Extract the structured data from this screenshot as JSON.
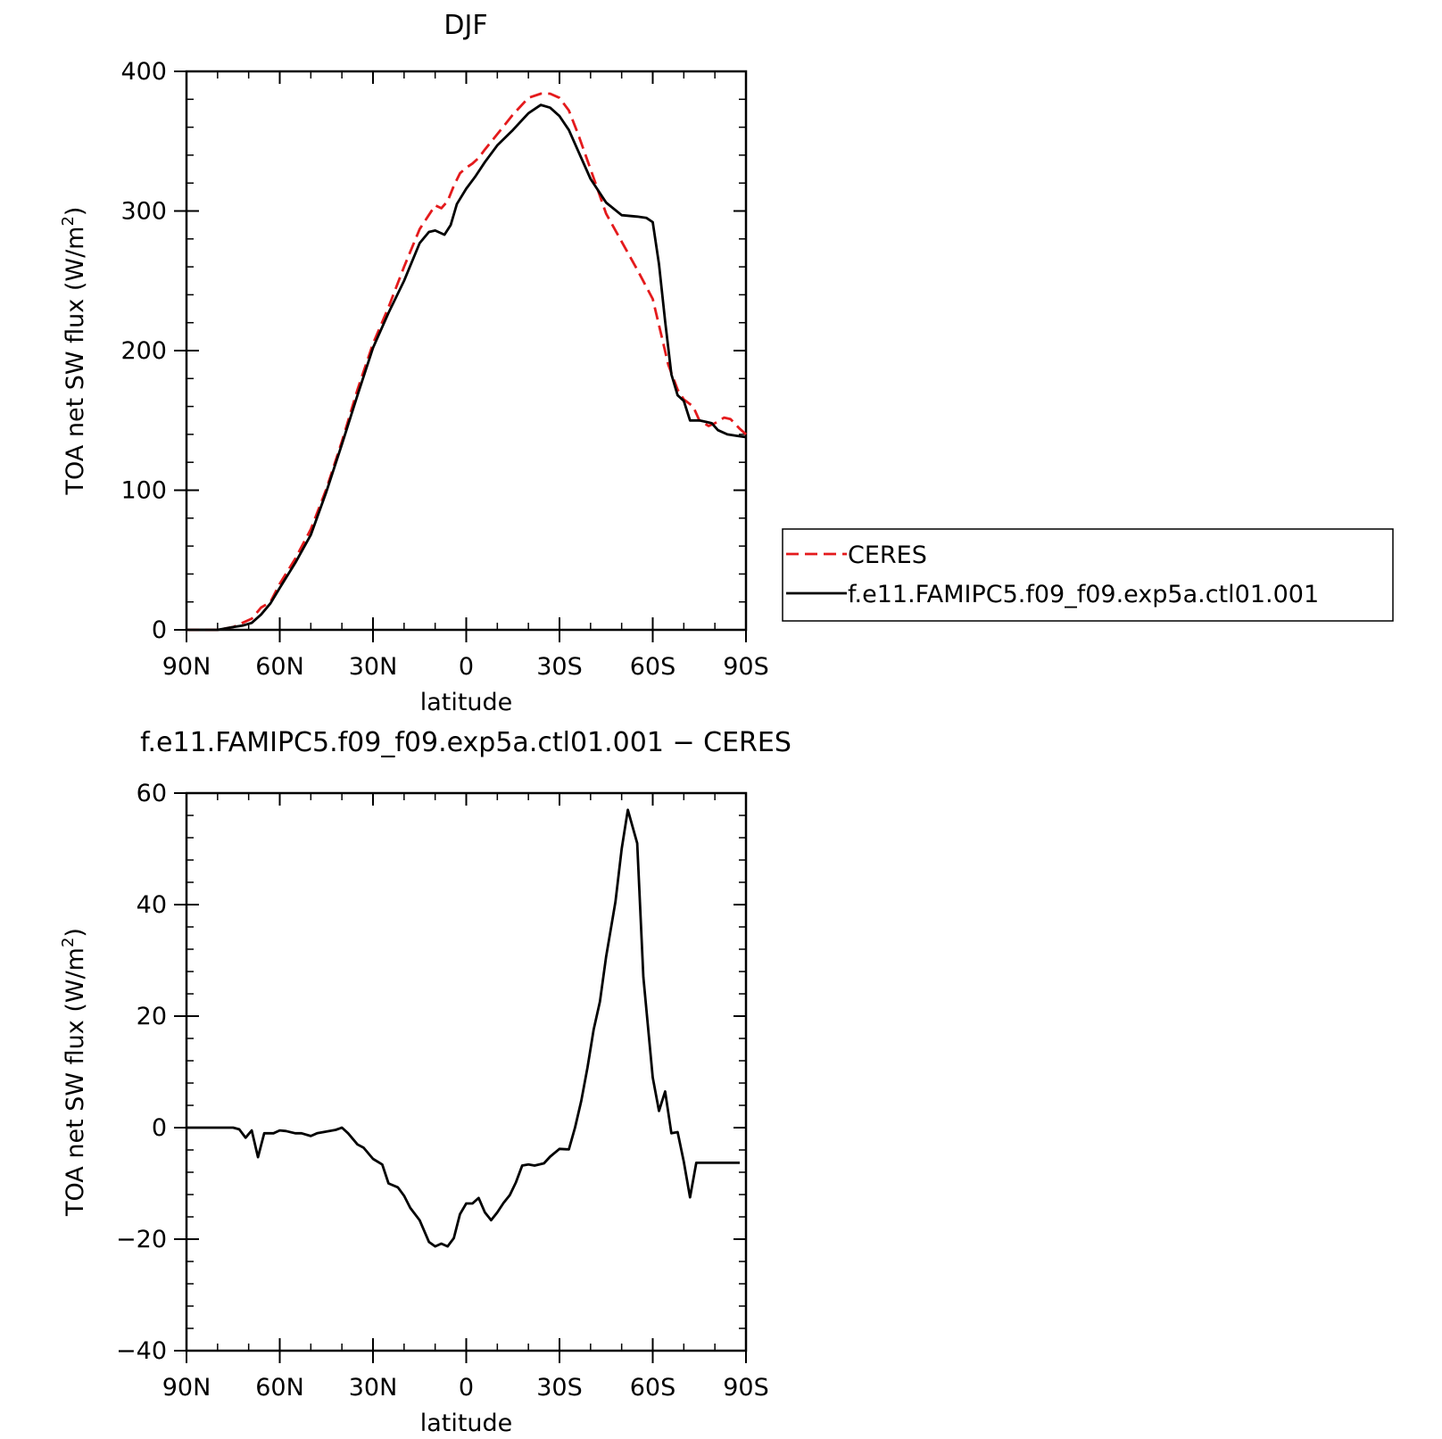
{
  "chart_data": [
    {
      "type": "line",
      "title": "DJF",
      "xlabel": "latitude",
      "ylabel": "TOA net SW flux (W/m²)",
      "ylabel_main": "TOA net SW flux (W/m",
      "ylabel_sup": "2",
      "ylabel_end": ")",
      "xlim": [
        90,
        -90
      ],
      "ylim": [
        0,
        400
      ],
      "xticks": [
        90,
        60,
        30,
        0,
        -30,
        -60,
        -90
      ],
      "xtick_labels": [
        "90N",
        "60N",
        "30N",
        "0",
        "30S",
        "60S",
        "90S"
      ],
      "yticks": [
        0,
        100,
        200,
        300,
        400
      ],
      "ytick_labels": [
        "0",
        "100",
        "200",
        "300",
        "400"
      ],
      "grid": false,
      "legend": "right",
      "series": [
        {
          "name": "CERES",
          "color": "#e41a1c",
          "dash": "dashed",
          "x": [
            90,
            85,
            80,
            75,
            72,
            69,
            66,
            63,
            60,
            55,
            50,
            45,
            40,
            35,
            30,
            25,
            20,
            15,
            10,
            8,
            6,
            4,
            2,
            0,
            -2,
            -4,
            -6,
            -10,
            -15,
            -20,
            -24,
            -27,
            -30,
            -33,
            -36,
            -40,
            -45,
            -50,
            -55,
            -60,
            -63,
            -65,
            -68,
            -70,
            -73,
            -75,
            -78,
            -80,
            -83,
            -85,
            -88,
            -90
          ],
          "y": [
            0,
            0,
            0,
            2,
            5,
            8,
            16,
            20,
            33,
            51,
            72,
            101,
            135,
            172,
            205,
            231,
            260,
            287,
            304,
            302,
            307,
            318,
            327,
            331,
            334,
            338,
            344,
            355,
            369,
            381,
            384,
            384,
            381,
            372,
            355,
            330,
            298,
            278,
            258,
            237,
            209,
            190,
            172,
            165,
            160,
            150,
            146,
            148,
            152,
            151,
            144,
            140
          ]
        },
        {
          "name": "f.e11.FAMIPC5.f09_f09.exp5a.ctl01.001",
          "color": "#000000",
          "dash": "solid",
          "x": [
            90,
            85,
            80,
            75,
            72,
            69,
            66,
            63,
            60,
            55,
            50,
            45,
            40,
            35,
            30,
            25,
            20,
            15,
            12,
            10,
            7,
            5,
            3,
            0,
            -3,
            -6,
            -10,
            -15,
            -20,
            -24,
            -27,
            -30,
            -33,
            -36,
            -40,
            -45,
            -50,
            -55,
            -58,
            -60,
            -62,
            -64,
            -66,
            -68,
            -70,
            -72,
            -75,
            -77,
            -79,
            -81,
            -84,
            -87,
            -90
          ],
          "y": [
            0,
            0,
            0,
            2,
            3,
            5,
            11,
            19,
            30,
            48,
            68,
            99,
            133,
            168,
            202,
            227,
            250,
            277,
            285,
            286,
            283,
            290,
            305,
            316,
            325,
            335,
            347,
            358,
            370,
            376,
            374,
            368,
            358,
            343,
            323,
            306,
            297,
            296,
            295,
            292,
            262,
            221,
            183,
            168,
            164,
            150,
            150,
            149,
            148,
            143,
            140,
            139,
            138
          ]
        }
      ]
    },
    {
      "type": "line",
      "title": "f.e11.FAMIPC5.f09_f09.exp5a.ctl01.001 − CERES",
      "xlabel": "latitude",
      "ylabel": "TOA net SW flux (W/m²)",
      "ylabel_main": "TOA net SW flux (W/m",
      "ylabel_sup": "2",
      "ylabel_end": ")",
      "xlim": [
        90,
        -90
      ],
      "ylim": [
        -40,
        60
      ],
      "xticks": [
        90,
        60,
        30,
        0,
        -30,
        -60,
        -90
      ],
      "xtick_labels": [
        "90N",
        "60N",
        "30N",
        "0",
        "30S",
        "60S",
        "90S"
      ],
      "yticks": [
        -40,
        -20,
        0,
        20,
        40,
        60
      ],
      "ytick_labels": [
        "−40",
        "−20",
        "0",
        "20",
        "40",
        "60"
      ],
      "grid": false,
      "series": [
        {
          "color": "#000000",
          "dash": "solid",
          "x": [
            90,
            85,
            80,
            75,
            73,
            71,
            69,
            67,
            65,
            62,
            60,
            58,
            55,
            53,
            50,
            48,
            45,
            42,
            40,
            38,
            35,
            33,
            30,
            27,
            25,
            22,
            20,
            18,
            15,
            12,
            10,
            8,
            6,
            4,
            2,
            0,
            -2,
            -4,
            -6,
            -8,
            -10,
            -12,
            -14,
            -16,
            -18,
            -20,
            -22,
            -25,
            -27,
            -30,
            -33,
            -35,
            -37,
            -39,
            -41,
            -43,
            -45,
            -48,
            -50,
            -52,
            -55,
            -57,
            -60,
            -62,
            -64,
            -66,
            -68,
            -70,
            -72,
            -74,
            -76,
            -78,
            -80,
            -83,
            -86,
            -88
          ],
          "y": [
            0,
            0,
            0,
            0,
            -0.3,
            -1.8,
            -0.5,
            -5.3,
            -1,
            -1,
            -0.5,
            -0.6,
            -1,
            -1,
            -1.5,
            -1,
            -0.7,
            -0.4,
            0,
            -1,
            -3,
            -3.6,
            -5.6,
            -6.6,
            -10,
            -10.7,
            -12.2,
            -14.4,
            -16.6,
            -20.5,
            -21.3,
            -20.8,
            -21.3,
            -19.8,
            -15.5,
            -13.6,
            -13.6,
            -12.6,
            -15.2,
            -16.6,
            -15.2,
            -13.5,
            -12.1,
            -9.8,
            -6.8,
            -6.6,
            -6.8,
            -6.4,
            -5.2,
            -3.8,
            -3.9,
            0,
            4.8,
            10.8,
            17.6,
            22.6,
            30.7,
            40.5,
            50,
            57,
            51,
            27,
            9,
            3,
            6.5,
            -1,
            -0.8,
            -6.1,
            -12.5,
            -6.3,
            -6.3,
            -6.3,
            -6.3,
            -6.3,
            -6.3,
            -6.3
          ]
        }
      ]
    }
  ],
  "legend": {
    "entries": [
      {
        "label": "CERES",
        "color": "#e41a1c",
        "dash": "dashed"
      },
      {
        "label": "f.e11.FAMIPC5.f09_f09.exp5a.ctl01.001",
        "color": "#000000",
        "dash": "solid"
      }
    ]
  }
}
